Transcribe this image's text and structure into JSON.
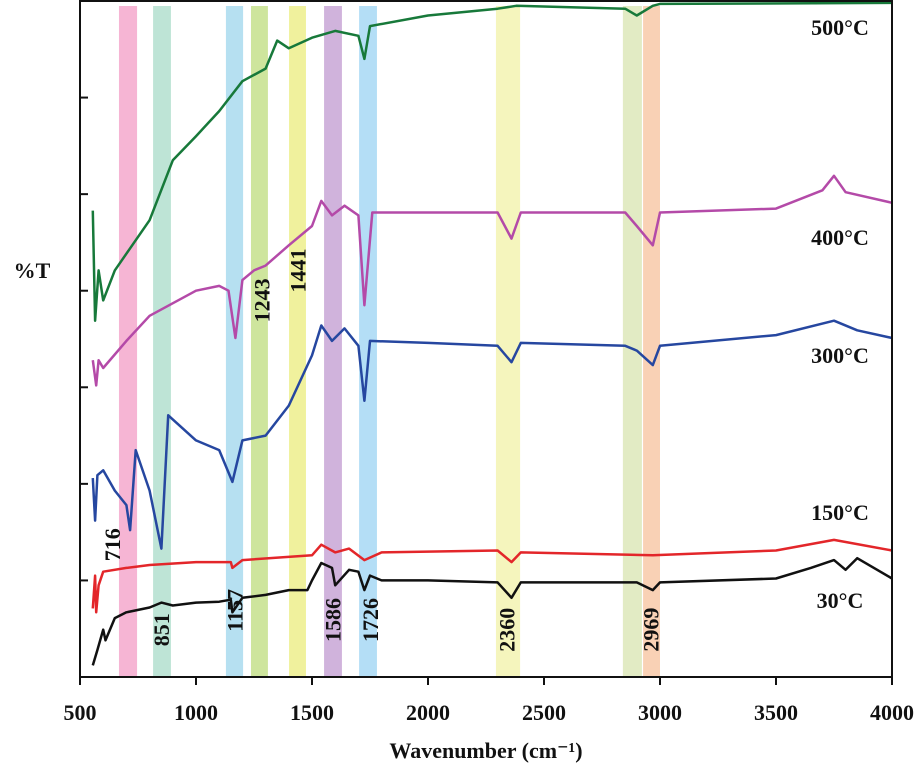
{
  "chart_data": {
    "type": "line",
    "x_label": "Wavenumber (cm⁻¹)",
    "y_label": "%T",
    "xlim": [
      500,
      4000
    ],
    "xticks": [
      500,
      1000,
      1500,
      2000,
      2500,
      3000,
      3500,
      4000
    ],
    "ylim": [
      0,
      7
    ],
    "yticks": [
      1,
      2,
      3,
      4,
      5,
      6
    ],
    "bands": [
      {
        "xmin": 668,
        "xmax": 746,
        "color": "#f5a8cc"
      },
      {
        "xmin": 815,
        "xmax": 892,
        "color": "#b3dfcf"
      },
      {
        "xmin": 1129,
        "xmax": 1203,
        "color": "#a9dbee"
      },
      {
        "xmin": 1237,
        "xmax": 1310,
        "color": "#c6e08c"
      },
      {
        "xmin": 1401,
        "xmax": 1474,
        "color": "#edef8c"
      },
      {
        "xmin": 1552,
        "xmax": 1629,
        "color": "#c8a6d6"
      },
      {
        "xmin": 1703,
        "xmax": 1780,
        "color": "#a7d8f5"
      },
      {
        "xmin": 2293,
        "xmax": 2397,
        "color": "#f3f3b2"
      },
      {
        "xmin": 2840,
        "xmax": 2922,
        "color": "#dde8ba"
      },
      {
        "xmin": 2927,
        "xmax": 3000,
        "color": "#f8c9a8"
      }
    ],
    "annotations": [
      {
        "text": "716",
        "x": 650,
        "y": 1.37
      },
      {
        "text": "851",
        "x": 862,
        "y": 0.49
      },
      {
        "text": "1157",
        "x": 1178,
        "y": 0.69
      },
      {
        "text": "1243",
        "x": 1295,
        "y": 3.9
      },
      {
        "text": "1441",
        "x": 1450,
        "y": 4.21
      },
      {
        "text": "1586",
        "x": 1602,
        "y": 0.59
      },
      {
        "text": "1726",
        "x": 1762,
        "y": 0.59
      },
      {
        "text": "2360",
        "x": 2352,
        "y": 0.49
      },
      {
        "text": "2969",
        "x": 2972,
        "y": 0.49
      }
    ],
    "series": [
      {
        "name": "30°C",
        "color": "#111111",
        "x": [
          555,
          575,
          600,
          610,
          650,
          700,
          800,
          851,
          900,
          1000,
          1100,
          1150,
          1157,
          1200,
          1300,
          1400,
          1480,
          1500,
          1540,
          1586,
          1600,
          1660,
          1700,
          1726,
          1750,
          1800,
          2000,
          2300,
          2360,
          2400,
          2900,
          2969,
          3000,
          3500,
          3650,
          3750,
          3800,
          3850,
          4000
        ],
        "values": [
          0.12,
          0.28,
          0.49,
          0.38,
          0.61,
          0.67,
          0.72,
          0.77,
          0.74,
          0.77,
          0.78,
          0.8,
          0.67,
          0.82,
          0.85,
          0.9,
          0.9,
          1.0,
          1.18,
          1.13,
          0.95,
          1.11,
          1.09,
          0.9,
          1.05,
          1.0,
          1.0,
          0.98,
          0.82,
          0.98,
          0.98,
          0.9,
          0.98,
          1.02,
          1.13,
          1.21,
          1.11,
          1.23,
          1.02
        ]
      },
      {
        "name": "150°C",
        "color": "#e3262a",
        "x": [
          555,
          565,
          570,
          580,
          600,
          700,
          800,
          1000,
          1150,
          1157,
          1200,
          1500,
          1540,
          1600,
          1660,
          1726,
          1800,
          2300,
          2360,
          2400,
          2969,
          3500,
          3750,
          4000
        ],
        "values": [
          0.71,
          1.05,
          0.67,
          0.95,
          1.09,
          1.13,
          1.16,
          1.19,
          1.19,
          1.13,
          1.21,
          1.26,
          1.37,
          1.29,
          1.33,
          1.21,
          1.29,
          1.31,
          1.19,
          1.29,
          1.26,
          1.31,
          1.42,
          1.31
        ]
      },
      {
        "name": "300°C",
        "color": "#2647a0",
        "x": [
          555,
          565,
          575,
          600,
          650,
          700,
          716,
          740,
          800,
          851,
          880,
          1000,
          1100,
          1157,
          1200,
          1300,
          1400,
          1500,
          1540,
          1586,
          1640,
          1700,
          1726,
          1750,
          2000,
          2300,
          2360,
          2400,
          2850,
          2900,
          2969,
          3000,
          3500,
          3750,
          3850,
          4000
        ],
        "values": [
          2.06,
          1.62,
          2.09,
          2.14,
          1.93,
          1.78,
          1.52,
          2.35,
          1.93,
          1.33,
          2.71,
          2.45,
          2.35,
          2.02,
          2.45,
          2.5,
          2.81,
          3.33,
          3.64,
          3.48,
          3.61,
          3.43,
          2.86,
          3.48,
          3.46,
          3.43,
          3.26,
          3.46,
          3.43,
          3.38,
          3.23,
          3.43,
          3.54,
          3.69,
          3.59,
          3.51
        ]
      },
      {
        "name": "400°C",
        "color": "#b44aa8",
        "x": [
          555,
          570,
          580,
          600,
          700,
          800,
          1000,
          1100,
          1140,
          1170,
          1200,
          1250,
          1300,
          1400,
          1500,
          1540,
          1586,
          1640,
          1700,
          1726,
          1760,
          2000,
          2300,
          2360,
          2400,
          2850,
          2900,
          2969,
          3000,
          3500,
          3700,
          3750,
          3800,
          4000
        ],
        "values": [
          3.28,
          3.02,
          3.28,
          3.2,
          3.48,
          3.74,
          4.0,
          4.05,
          4.0,
          3.51,
          4.11,
          4.21,
          4.26,
          4.47,
          4.67,
          4.93,
          4.78,
          4.88,
          4.78,
          3.85,
          4.81,
          4.81,
          4.81,
          4.54,
          4.81,
          4.81,
          4.67,
          4.47,
          4.81,
          4.85,
          5.04,
          5.19,
          5.02,
          4.91
        ]
      },
      {
        "name": "500°C",
        "color": "#17793a",
        "x": [
          555,
          565,
          580,
          600,
          650,
          800,
          900,
          1000,
          1100,
          1200,
          1300,
          1350,
          1400,
          1500,
          1600,
          1700,
          1726,
          1750,
          2000,
          2300,
          2380,
          2850,
          2900,
          2969,
          3000,
          4000
        ],
        "values": [
          4.83,
          3.69,
          4.21,
          3.9,
          4.21,
          4.73,
          5.35,
          5.6,
          5.86,
          6.17,
          6.3,
          6.59,
          6.51,
          6.62,
          6.69,
          6.64,
          6.4,
          6.74,
          6.85,
          6.92,
          6.95,
          6.92,
          6.85,
          6.95,
          6.97,
          6.98
        ]
      }
    ]
  }
}
